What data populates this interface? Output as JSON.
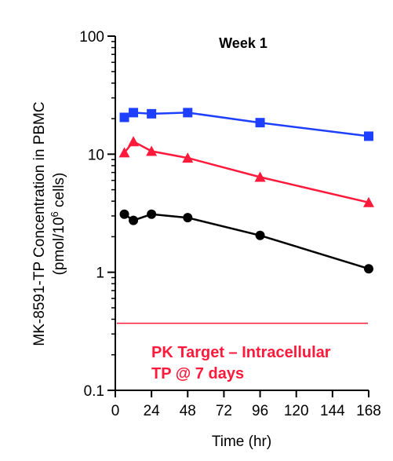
{
  "chart_data": {
    "type": "line",
    "title": "Week 1",
    "xlabel": "Time (hr)",
    "ylabel_line1": "MK-8591-TP Concentration in PBMC",
    "ylabel_line2_prefix": "(pmol/10",
    "ylabel_line2_sup": "6",
    "ylabel_line2_suffix": " cells)",
    "x_scale": "linear",
    "y_scale": "log",
    "xlim": [
      0,
      168
    ],
    "ylim": [
      0.1,
      100
    ],
    "x_ticks": [
      0,
      24,
      48,
      72,
      96,
      120,
      144,
      168
    ],
    "x_tick_labels": [
      "0",
      "24",
      "48",
      "72",
      "96",
      "120",
      "144",
      "168"
    ],
    "y_ticks": [
      0.1,
      1,
      10,
      100
    ],
    "y_tick_labels": [
      "0.1",
      "1",
      "10",
      "100"
    ],
    "grid": false,
    "legend": "none",
    "series": [
      {
        "color": "#1f3fff",
        "marker": "square",
        "x": [
          6,
          12,
          24,
          48,
          96,
          168
        ],
        "y": [
          20.5,
          22.5,
          22.0,
          22.5,
          18.5,
          14.2
        ]
      },
      {
        "color": "#ff1a3c",
        "marker": "triangle",
        "x": [
          6,
          12,
          24,
          48,
          96,
          168
        ],
        "y": [
          10.3,
          12.8,
          10.6,
          9.3,
          6.4,
          3.9
        ]
      },
      {
        "color": "#000000",
        "marker": "circle",
        "x": [
          6,
          12,
          24,
          48,
          96,
          168
        ],
        "y": [
          3.1,
          2.75,
          3.1,
          2.9,
          2.05,
          1.07
        ]
      }
    ],
    "reference_line": {
      "y": 0.37,
      "color": "#ff1a3c",
      "label_line1": "PK Target – Intracellular",
      "label_line2": "TP @ 7 days"
    }
  }
}
